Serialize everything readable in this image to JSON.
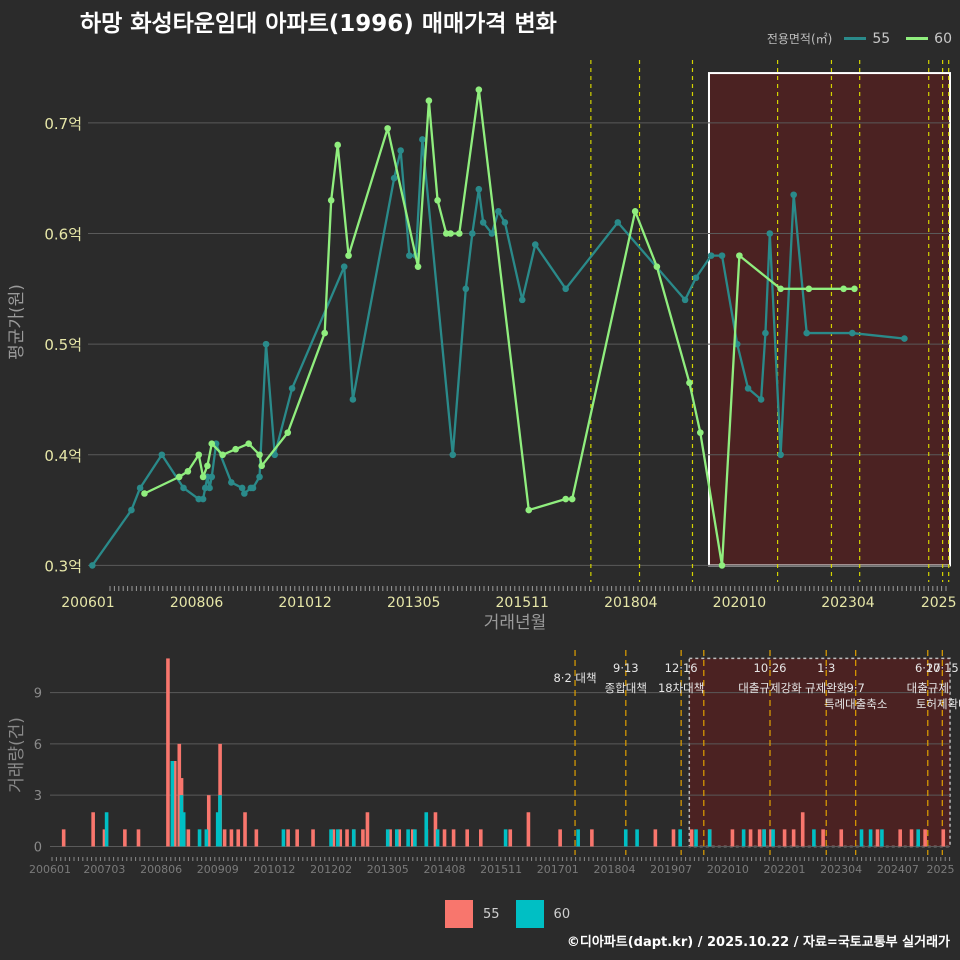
{
  "title": "하망 화성타운임대 아파트(1996) 매매가격 변화",
  "legend": {
    "title": "전용면적(㎡)",
    "items": [
      {
        "label": "55",
        "color": "#2a8a8a",
        "bar_color": "#f8766d"
      },
      {
        "label": "60",
        "color": "#90ee7e",
        "bar_color": "#00bfc4"
      }
    ]
  },
  "source": "©디아파트(dapt.kr) / 2025.10.22 / 자료=국토교통부 실거래가",
  "chart_data": [
    {
      "type": "line",
      "ylabel": "평균가(원)",
      "xlabel": "거래년월",
      "ylim": [
        0.285,
        0.755
      ],
      "yticks": [
        0.3,
        0.4,
        0.5,
        0.6,
        0.7
      ],
      "ytick_labels": [
        "0.3억",
        "0.4억",
        "0.5억",
        "0.6억",
        "0.7억"
      ],
      "xlim": [
        2006.0,
        2025.85
      ],
      "xticks": [
        2006.0,
        2008.5,
        2011.0,
        2013.5,
        2016.0,
        2018.5,
        2021.0,
        2023.5,
        2026.0
      ],
      "xtick_labels": [
        "200601",
        "200806",
        "201012",
        "201305",
        "201511",
        "201804",
        "202010",
        "202304",
        "2025"
      ],
      "policy_lines": [
        2017.58,
        2018.7,
        2019.92,
        2021.88,
        2023.12,
        2023.77,
        2025.36,
        2025.68,
        2025.82
      ],
      "highlight": {
        "x0": 2020.3,
        "x1": 2025.85,
        "y0": 0.3,
        "y1": 0.745
      },
      "series": [
        {
          "name": "55",
          "x": [
            2006.1,
            2007.0,
            2007.2,
            2007.7,
            2008.2,
            2008.55,
            2008.65,
            2008.7,
            2008.75,
            2008.8,
            2008.85,
            2008.95,
            2009.3,
            2009.55,
            2009.6,
            2009.75,
            2009.8,
            2009.95,
            2010.1,
            2010.3,
            2010.7,
            2011.9,
            2012.1,
            2013.05,
            2013.2,
            2013.4,
            2013.55,
            2013.7,
            2014.4,
            2014.7,
            2014.85,
            2015.0,
            2015.1,
            2015.3,
            2015.45,
            2015.6,
            2016.0,
            2016.3,
            2017.0,
            2018.2,
            2019.75,
            2020.0,
            2020.35,
            2020.6,
            2020.95,
            2021.2,
            2021.5,
            2021.6,
            2021.7,
            2021.95,
            2022.25,
            2022.55,
            2023.6,
            2024.8
          ],
          "y": [
            0.3,
            0.35,
            0.37,
            0.4,
            0.37,
            0.36,
            0.36,
            0.37,
            0.38,
            0.37,
            0.38,
            0.41,
            0.375,
            0.37,
            0.365,
            0.37,
            0.37,
            0.38,
            0.5,
            0.4,
            0.46,
            0.57,
            0.45,
            0.65,
            0.675,
            0.58,
            0.58,
            0.685,
            0.4,
            0.55,
            0.6,
            0.64,
            0.61,
            0.6,
            0.62,
            0.61,
            0.54,
            0.59,
            0.55,
            0.61,
            0.54,
            0.56,
            0.58,
            0.58,
            0.5,
            0.46,
            0.45,
            0.51,
            0.6,
            0.4,
            0.635,
            0.51,
            0.51,
            0.505
          ]
        },
        {
          "name": "60",
          "x": [
            2007.3,
            2008.1,
            2008.3,
            2008.55,
            2008.65,
            2008.75,
            2008.85,
            2009.1,
            2009.4,
            2009.7,
            2009.95,
            2010.0,
            2010.6,
            2011.45,
            2011.6,
            2011.75,
            2012.0,
            2012.9,
            2013.6,
            2013.85,
            2014.05,
            2014.25,
            2014.35,
            2014.55,
            2015.0,
            2016.15,
            2017.0,
            2017.15,
            2018.6,
            2019.1,
            2019.85,
            2020.1,
            2020.6,
            2021.0,
            2021.95,
            2022.6,
            2023.4,
            2023.65
          ],
          "y": [
            0.365,
            0.38,
            0.385,
            0.4,
            0.38,
            0.39,
            0.41,
            0.4,
            0.405,
            0.41,
            0.4,
            0.39,
            0.42,
            0.51,
            0.63,
            0.68,
            0.58,
            0.695,
            0.57,
            0.72,
            0.63,
            0.6,
            0.6,
            0.6,
            0.73,
            0.35,
            0.36,
            0.36,
            0.62,
            0.57,
            0.465,
            0.42,
            0.3,
            0.58,
            0.55,
            0.55,
            0.55,
            0.55
          ]
        }
      ]
    },
    {
      "type": "bar",
      "ylabel": "거래량(건)",
      "ylim": [
        -0.5,
        11.2
      ],
      "yticks": [
        0,
        3,
        6,
        9
      ],
      "ytick_labels": [
        "0",
        "3",
        "6",
        "9"
      ],
      "xlim": [
        2006.0,
        2025.85
      ],
      "xticks": [
        2006.0,
        2007.2,
        2008.45,
        2009.7,
        2010.95,
        2012.2,
        2013.45,
        2014.7,
        2015.95,
        2017.2,
        2018.45,
        2019.7,
        2020.95,
        2022.2,
        2023.45,
        2024.7,
        2025.95
      ],
      "xtick_labels": [
        "200601",
        "200703",
        "200806",
        "200909",
        "201012",
        "201202",
        "201305",
        "201408",
        "201511",
        "201701",
        "201804",
        "201907",
        "202010",
        "202201",
        "202304",
        "202407",
        "2025"
      ],
      "highlight": {
        "x0": 2020.1,
        "x1": 2025.85,
        "y0": 0,
        "y1": 11
      },
      "annotations": [
        {
          "x": 2017.58,
          "label": "8·2 대책",
          "row": 2
        },
        {
          "x": 2018.7,
          "label": "9·13",
          "row": 1
        },
        {
          "x": 2018.7,
          "label": "종합대책",
          "row": 3
        },
        {
          "x": 2019.92,
          "label": "12·16",
          "row": 1
        },
        {
          "x": 2019.92,
          "label": "18차대책",
          "row": 3
        },
        {
          "x": 2021.88,
          "label": "10·26",
          "row": 1
        },
        {
          "x": 2021.88,
          "label": "대출규제강화",
          "row": 3
        },
        {
          "x": 2023.12,
          "label": "1·3",
          "row": 1
        },
        {
          "x": 2023.12,
          "label": "규제완화",
          "row": 3
        },
        {
          "x": 2023.77,
          "label": "9·7",
          "row": 3
        },
        {
          "x": 2023.77,
          "label": "특례대출축소",
          "row": 4
        },
        {
          "x": 2025.36,
          "label": "6·27",
          "row": 1
        },
        {
          "x": 2025.36,
          "label": "대출규제",
          "row": 3
        },
        {
          "x": 2025.68,
          "label": "10·15",
          "row": 1
        },
        {
          "x": 2025.68,
          "label": "토허제확대",
          "row": 4
        }
      ],
      "policy_lines": [
        2017.58,
        2018.7,
        2019.92,
        2020.42,
        2021.88,
        2023.12,
        2023.77,
        2025.36,
        2025.68
      ],
      "series": [
        {
          "name": "55",
          "x": [
            2006.35,
            2007.0,
            2007.25,
            2007.7,
            2008.0,
            2008.65,
            2008.8,
            2008.9,
            2008.95,
            2009.0,
            2009.1,
            2009.55,
            2009.8,
            2009.9,
            2010.05,
            2010.2,
            2010.35,
            2010.6,
            2011.3,
            2011.5,
            2011.85,
            2012.3,
            2012.45,
            2012.6,
            2012.75,
            2012.95,
            2013.05,
            2013.55,
            2013.75,
            2014.05,
            2014.35,
            2014.55,
            2014.75,
            2014.95,
            2015.25,
            2015.55,
            2016.2,
            2016.6,
            2017.3,
            2018.0,
            2019.4,
            2019.8,
            2020.2,
            2020.6,
            2021.1,
            2021.5,
            2021.7,
            2021.8,
            2021.95,
            2022.25,
            2022.45,
            2022.65,
            2023.1,
            2023.5,
            2024.3,
            2024.8,
            2025.05,
            2025.35,
            2025.75
          ],
          "y": [
            1,
            2,
            1,
            1,
            1,
            11,
            5,
            6,
            4,
            1,
            1,
            3,
            6,
            1,
            1,
            1,
            2,
            1,
            1,
            1,
            1,
            1,
            1,
            1,
            1,
            1,
            2,
            1,
            1,
            1,
            1,
            2,
            1,
            1,
            1,
            1,
            1,
            2,
            1,
            1,
            1,
            1,
            1,
            1,
            1,
            1,
            1,
            1,
            1,
            1,
            1,
            2,
            1,
            1,
            1,
            1,
            1,
            1,
            1
          ]
        },
        {
          "name": "60",
          "x": [
            2007.2,
            2008.65,
            2008.85,
            2008.9,
            2009.25,
            2009.4,
            2009.65,
            2009.7,
            2011.1,
            2012.15,
            2012.3,
            2012.65,
            2013.4,
            2013.6,
            2013.85,
            2014.0,
            2014.25,
            2014.5,
            2016.0,
            2017.6,
            2018.65,
            2018.9,
            2019.85,
            2020.2,
            2020.5,
            2021.25,
            2021.7,
            2021.9,
            2022.8,
            2023.85,
            2024.05,
            2024.3,
            2025.1
          ],
          "y": [
            2,
            5,
            3,
            2,
            1,
            1,
            2,
            3,
            1,
            1,
            1,
            1,
            1,
            1,
            1,
            1,
            2,
            1,
            1,
            1,
            1,
            1,
            1,
            1,
            1,
            1,
            1,
            1,
            1,
            1,
            1,
            1,
            1
          ]
        }
      ]
    }
  ]
}
